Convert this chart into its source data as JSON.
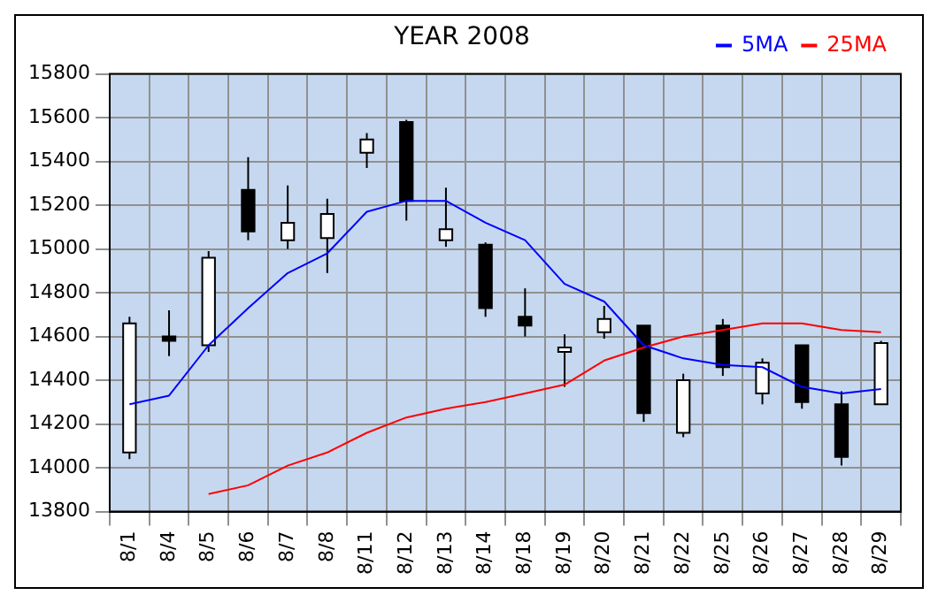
{
  "chart_data": {
    "type": "candlestick",
    "title": "YEAR 2008",
    "categories": [
      "8/1",
      "8/4",
      "8/5",
      "8/6",
      "8/7",
      "8/8",
      "8/11",
      "8/12",
      "8/13",
      "8/14",
      "8/18",
      "8/19",
      "8/20",
      "8/21",
      "8/22",
      "8/25",
      "8/26",
      "8/27",
      "8/28",
      "8/29"
    ],
    "ohlc": [
      [
        14070,
        14690,
        14040,
        14660
      ],
      [
        14600,
        14720,
        14510,
        14580
      ],
      [
        14560,
        14990,
        14530,
        14960
      ],
      [
        15270,
        15420,
        15040,
        15080
      ],
      [
        15040,
        15290,
        15000,
        15120
      ],
      [
        15050,
        15230,
        14890,
        15160
      ],
      [
        15440,
        15530,
        15370,
        15500
      ],
      [
        15580,
        15590,
        15130,
        15220
      ],
      [
        15040,
        15280,
        15010,
        15090
      ],
      [
        15020,
        15030,
        14690,
        14730
      ],
      [
        14690,
        14820,
        14600,
        14650
      ],
      [
        14530,
        14610,
        14370,
        14550
      ],
      [
        14620,
        14740,
        14590,
        14680
      ],
      [
        14650,
        14650,
        14210,
        14250
      ],
      [
        14160,
        14430,
        14140,
        14400
      ],
      [
        14650,
        14680,
        14420,
        14460
      ],
      [
        14340,
        14500,
        14290,
        14480
      ],
      [
        14560,
        14560,
        14270,
        14300
      ],
      [
        14290,
        14350,
        14010,
        14050
      ],
      [
        14290,
        14580,
        14290,
        14570
      ]
    ],
    "series": [
      {
        "name": "5MA",
        "type": "line",
        "color": "#0000ff",
        "values": [
          14290,
          14330,
          14560,
          14730,
          14890,
          14980,
          15170,
          15220,
          15220,
          15120,
          15040,
          14840,
          14760,
          14560,
          14500,
          14470,
          14460,
          14370,
          14340,
          14360
        ]
      },
      {
        "name": "25MA",
        "type": "line",
        "color": "#ff0000",
        "values": [
          null,
          null,
          13880,
          13920,
          14010,
          14070,
          14160,
          14230,
          14270,
          14300,
          14340,
          14380,
          14490,
          14550,
          14600,
          14630,
          14660,
          14660,
          14630,
          14620
        ]
      }
    ],
    "ylim": [
      13800,
      15800
    ],
    "yticks": [
      13800,
      14000,
      14200,
      14400,
      14600,
      14800,
      15000,
      15200,
      15400,
      15600,
      15800
    ],
    "grid": true,
    "legend": "top right",
    "marker": "none",
    "line_style": "solid"
  }
}
